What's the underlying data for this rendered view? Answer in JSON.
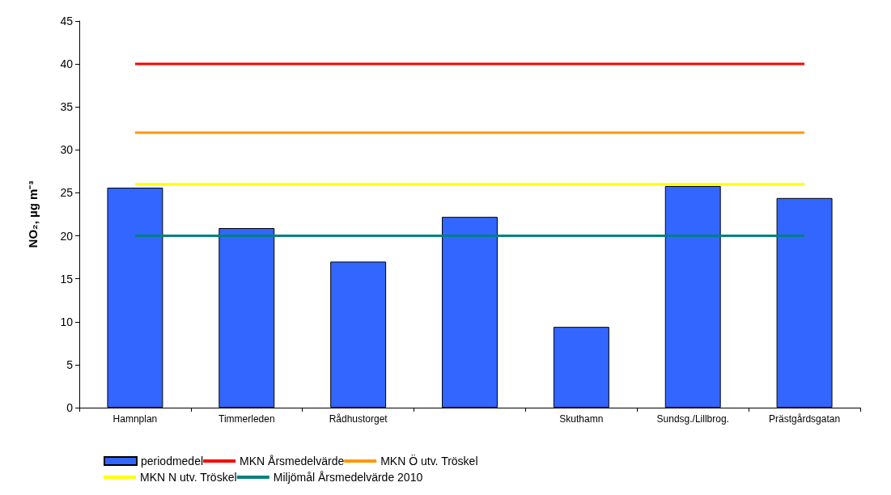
{
  "chart_data": {
    "type": "bar",
    "ylabel": "NO₂, µg m⁻³",
    "categories": [
      "Hamnplan",
      "Timmerleden",
      "Rådhustorget",
      null,
      "Skuthamn",
      "Sundsg./Lillbrog.",
      "Prästgårdsgatan"
    ],
    "series": [
      {
        "name": "periodmedel",
        "color": "#3366ff",
        "values": [
          25.6,
          20.9,
          17,
          22.2,
          9.4,
          25.8,
          24.4
        ]
      },
      {
        "name": "MKN Årsmedelvärde",
        "type": "line",
        "color": "#ff0000",
        "values": [
          40,
          40,
          40,
          40,
          40,
          40,
          40
        ]
      },
      {
        "name": "MKN Ö utv. Tröskel",
        "type": "line",
        "color": "#ff9900",
        "values": [
          32,
          32,
          32,
          32,
          32,
          32,
          32
        ]
      },
      {
        "name": "MKN N utv. Tröskel",
        "type": "line",
        "color": "#ffff00",
        "values": [
          26,
          26,
          26,
          26,
          26,
          26,
          26
        ]
      },
      {
        "name": "Miljömål Årsmedelvärde 2010",
        "type": "line",
        "color": "#008080",
        "values": [
          20,
          20,
          20,
          20,
          20,
          20,
          20
        ]
      }
    ],
    "ylim": [
      0,
      45
    ],
    "yticks": [
      0,
      5,
      10,
      15,
      20,
      25,
      30,
      35,
      40,
      45
    ],
    "grid": false,
    "legend": "bottom",
    "marker": "none"
  }
}
